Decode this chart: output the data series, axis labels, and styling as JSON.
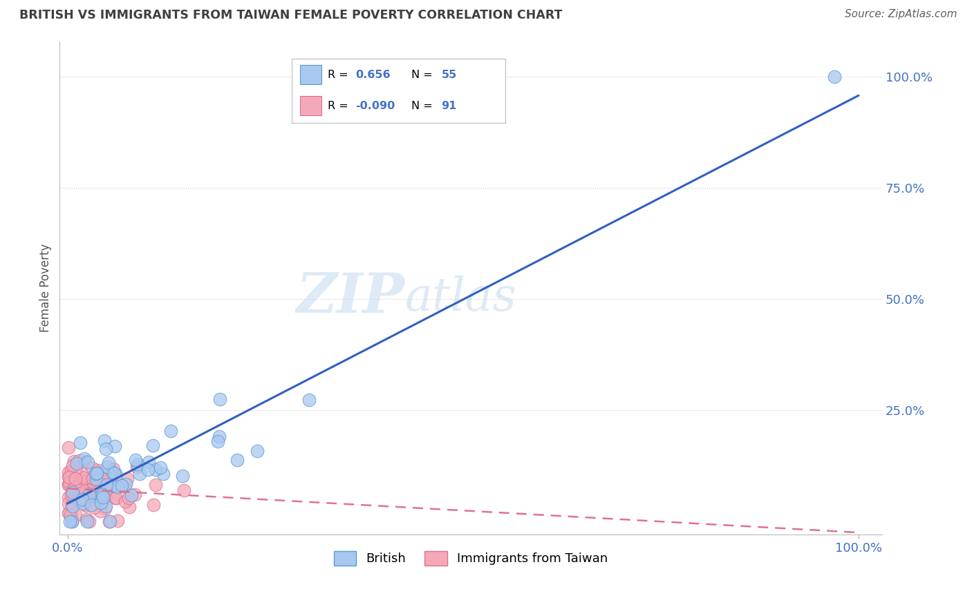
{
  "title": "BRITISH VS IMMIGRANTS FROM TAIWAN FEMALE POVERTY CORRELATION CHART",
  "source": "Source: ZipAtlas.com",
  "ylabel": "Female Poverty",
  "watermark_zip": "ZIP",
  "watermark_atlas": "atlas",
  "british_R": 0.656,
  "british_N": 55,
  "taiwan_R": -0.09,
  "taiwan_N": 91,
  "british_color": "#A8C8F0",
  "british_edge_color": "#5B9BD5",
  "taiwan_color": "#F4A8B8",
  "taiwan_edge_color": "#E07090",
  "blue_line_color": "#3060C0",
  "pink_line_color": "#E07090",
  "title_color": "#404040",
  "source_color": "#606060",
  "axis_color": "#4472C4",
  "legend_r_black": "#000000",
  "legend_val_color": "#4472C4",
  "background_color": "#FFFFFF",
  "grid_color": "#CCCCCC",
  "ytick_labels": [
    "25.0%",
    "50.0%",
    "75.0%",
    "100.0%"
  ],
  "ytick_values": [
    25,
    50,
    75,
    100
  ],
  "xlim": [
    -1,
    103
  ],
  "ylim": [
    -3,
    108
  ]
}
